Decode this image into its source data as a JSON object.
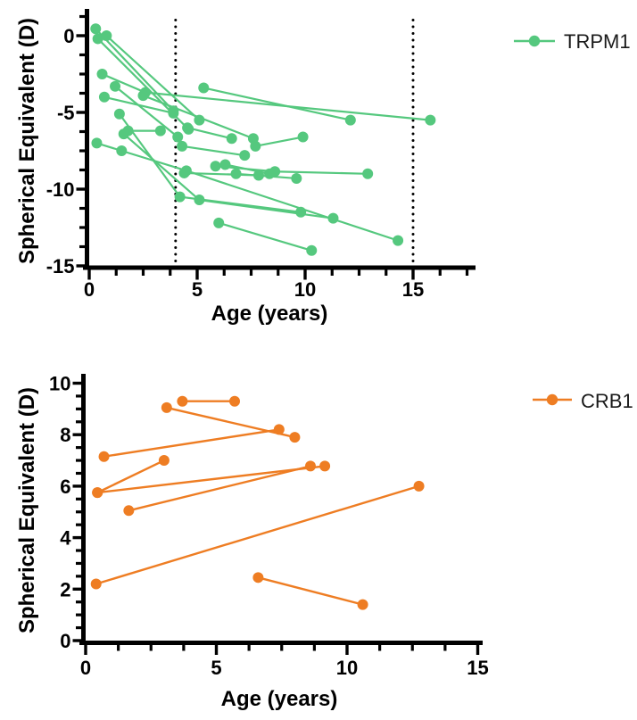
{
  "figure": {
    "description": "Spherical equivalent versus age, longitudinal tracks per patient",
    "background": "#ffffff"
  },
  "chart_data": [
    {
      "type": "line",
      "name": "TRPM1",
      "color": "#55C87E",
      "xlabel": "Age (years)",
      "ylabel": "Spherical Equivalent (D)",
      "xlim": [
        0,
        17.5
      ],
      "ylim": [
        -15,
        1.25
      ],
      "xticks": [
        0,
        5,
        10,
        15
      ],
      "yticks": [
        0,
        -5,
        -10,
        -15
      ],
      "x_minor_step": 1.25,
      "y_minor_step": 1.25,
      "grid": false,
      "legend_position": "right",
      "reference_vlines": [
        4,
        15
      ],
      "tracks": [
        [
          [
            0.3,
            0.45
          ],
          [
            3.9,
            -4.9
          ]
        ],
        [
          [
            0.4,
            -0.2
          ],
          [
            4.6,
            -6.1
          ]
        ],
        [
          [
            0.8,
            0.0
          ],
          [
            5.1,
            -5.5
          ]
        ],
        [
          [
            0.6,
            -2.5
          ],
          [
            2.6,
            -3.7
          ],
          [
            15.8,
            -5.5
          ]
        ],
        [
          [
            5.3,
            -3.4
          ],
          [
            12.1,
            -5.5
          ]
        ],
        [
          [
            1.2,
            -3.3
          ],
          [
            4.1,
            -6.6
          ]
        ],
        [
          [
            0.7,
            -4.0
          ],
          [
            3.9,
            -5.05
          ]
        ],
        [
          [
            2.5,
            -3.9
          ],
          [
            7.6,
            -6.7
          ]
        ],
        [
          [
            4.55,
            -6.0
          ],
          [
            6.6,
            -6.7
          ]
        ],
        [
          [
            7.7,
            -7.2
          ],
          [
            9.9,
            -6.6
          ]
        ],
        [
          [
            4.3,
            -7.2
          ],
          [
            7.2,
            -7.8
          ]
        ],
        [
          [
            1.8,
            -6.2
          ],
          [
            3.3,
            -6.2
          ]
        ],
        [
          [
            0.35,
            -7.0
          ],
          [
            1.5,
            -7.5
          ],
          [
            4.5,
            -8.8
          ],
          [
            14.3,
            -13.35
          ]
        ],
        [
          [
            1.4,
            -5.1
          ],
          [
            4.2,
            -10.5
          ],
          [
            9.8,
            -11.5
          ]
        ],
        [
          [
            1.6,
            -6.4
          ],
          [
            5.1,
            -10.7
          ],
          [
            11.3,
            -11.9
          ]
        ],
        [
          [
            4.4,
            -8.95
          ],
          [
            7.85,
            -9.1
          ]
        ],
        [
          [
            5.85,
            -8.5
          ],
          [
            8.6,
            -8.85
          ],
          [
            12.9,
            -9.0
          ]
        ],
        [
          [
            6.3,
            -8.4
          ],
          [
            8.35,
            -9.0
          ]
        ],
        [
          [
            6.8,
            -9.0
          ],
          [
            9.6,
            -9.3
          ]
        ],
        [
          [
            6.0,
            -12.2
          ],
          [
            10.3,
            -14.0
          ]
        ]
      ]
    },
    {
      "type": "line",
      "name": "CRB1",
      "color": "#EE7D23",
      "xlabel": "Age (years)",
      "ylabel": "Spherical Equivalent (D)",
      "xlim": [
        0,
        15
      ],
      "ylim": [
        0,
        10.3
      ],
      "xticks": [
        0,
        5,
        10,
        15
      ],
      "yticks": [
        0,
        2,
        4,
        6,
        8,
        10
      ],
      "x_minor_step": 1.25,
      "y_minor_step": 0.5,
      "grid": false,
      "legend_position": "right",
      "reference_vlines": [],
      "tracks": [
        [
          [
            0.45,
            5.75
          ],
          [
            3.0,
            7.0
          ]
        ],
        [
          [
            0.45,
            5.75
          ],
          [
            9.15,
            6.78
          ]
        ],
        [
          [
            1.65,
            5.05
          ],
          [
            8.6,
            6.78
          ]
        ],
        [
          [
            0.7,
            7.15
          ],
          [
            7.4,
            8.2
          ]
        ],
        [
          [
            3.1,
            9.05
          ],
          [
            8.0,
            7.9
          ]
        ],
        [
          [
            3.7,
            9.3
          ],
          [
            5.7,
            9.3
          ]
        ],
        [
          [
            0.4,
            2.2
          ],
          [
            12.75,
            6.0
          ]
        ],
        [
          [
            6.6,
            2.45
          ],
          [
            10.6,
            1.4
          ]
        ]
      ]
    }
  ]
}
